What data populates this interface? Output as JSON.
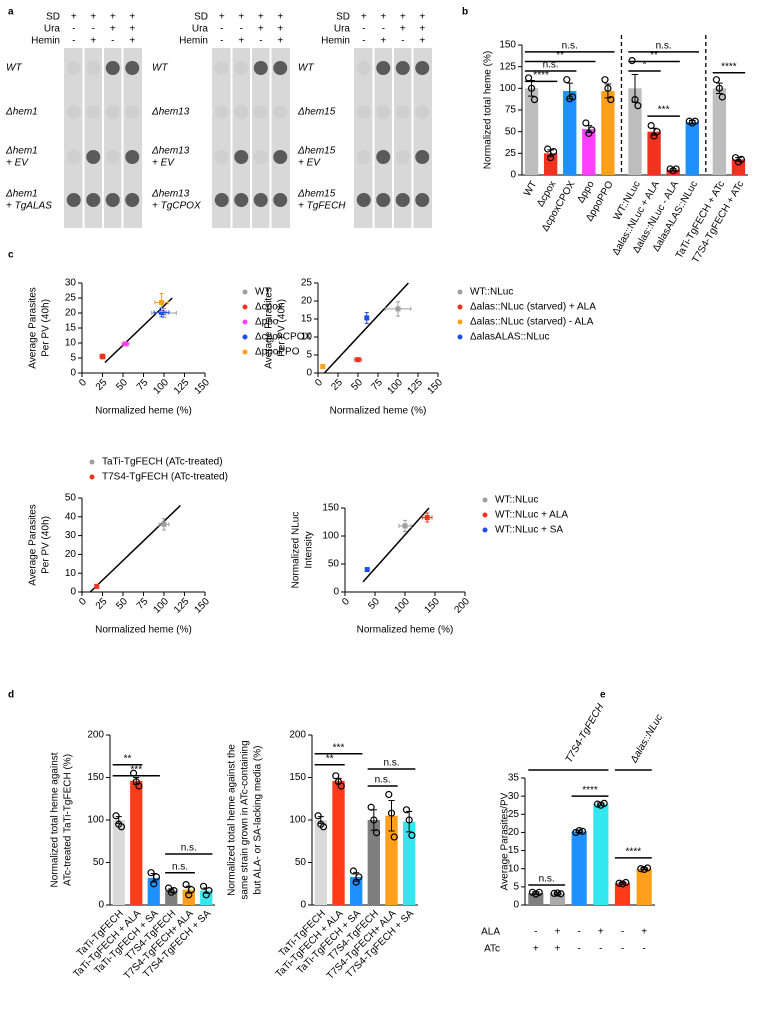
{
  "panel_labels": [
    "a",
    "b",
    "c",
    "d",
    "e"
  ],
  "panel_a": {
    "blocks": [
      {
        "headers": [
          {
            "label": "SD",
            "marks": [
              "+",
              "+",
              "+",
              "+"
            ]
          },
          {
            "label": "Ura",
            "marks": [
              "-",
              "-",
              "+",
              "+"
            ]
          },
          {
            "label": "Hemin",
            "marks": [
              "-",
              "+",
              "-",
              "+"
            ]
          }
        ],
        "rows": [
          [
            "WT"
          ],
          [
            "Δhem1"
          ],
          [
            "Δhem1",
            "+ EV"
          ],
          [
            "Δhem1",
            "+ TgALAS"
          ]
        ]
      },
      {
        "headers": [
          {
            "label": "SD",
            "marks": [
              "+",
              "+",
              "+",
              "+"
            ]
          },
          {
            "label": "Ura",
            "marks": [
              "-",
              "-",
              "+",
              "+"
            ]
          },
          {
            "label": "Hemin",
            "marks": [
              "-",
              "+",
              "-",
              "+"
            ]
          }
        ],
        "rows": [
          [
            "WT"
          ],
          [
            "Δhem13"
          ],
          [
            "Δhem13",
            "+ EV"
          ],
          [
            "Δhem13",
            "+ TgCPOX"
          ]
        ]
      },
      {
        "headers": [
          {
            "label": "SD",
            "marks": [
              "+",
              "+",
              "+",
              "+"
            ]
          },
          {
            "label": "Ura",
            "marks": [
              "-",
              "-",
              "+",
              "+"
            ]
          },
          {
            "label": "Hemin",
            "marks": [
              "-",
              "+",
              "-",
              "+"
            ]
          }
        ],
        "rows": [
          [
            "WT"
          ],
          [
            "Δhem15"
          ],
          [
            "Δhem15",
            "+ EV"
          ],
          [
            "Δhem15",
            "+ TgFECH"
          ]
        ]
      }
    ]
  },
  "chart_data": [
    {
      "type": "bar",
      "ylabel": [
        "Normalized total heme (%)"
      ],
      "categories": [
        "WT",
        "Δcpox",
        "ΔcpoxCPOX",
        "Δppo",
        "ΔppoPPO",
        "WT::NLuc",
        "Δalas::NLuc + ALA",
        "Δalas::NLuc - ALA",
        "ΔalasALAS::NLuc",
        "TaTi-TgFECH + ATc",
        "T7S4-TgFECH + ATc"
      ],
      "values": [
        100,
        25,
        97,
        53,
        97,
        100,
        50,
        6,
        61,
        100,
        18
      ],
      "errors": [
        9,
        4,
        9,
        4,
        8,
        16,
        4,
        1,
        2,
        6,
        2
      ],
      "points": [
        [
          112,
          100,
          87
        ],
        [
          30,
          20,
          27
        ],
        [
          110,
          88,
          90
        ],
        [
          60,
          48,
          52
        ],
        [
          110,
          100,
          87
        ],
        [
          132,
          87,
          80
        ],
        [
          57,
          45,
          50
        ],
        [
          7,
          5,
          7
        ],
        [
          62,
          60,
          62
        ],
        [
          110,
          100,
          90
        ],
        [
          20,
          15,
          18
        ]
      ],
      "colors": [
        "#bdbdbd",
        "#f0321e",
        "#1e90ff",
        "#ff40ff",
        "#ff9f1c",
        "#bdbdbd",
        "#f0321e",
        "#f0321e",
        "#1e90ff",
        "#bdbdbd",
        "#f0321e"
      ],
      "ylim": [
        0,
        150
      ],
      "yticks": [
        0,
        25,
        50,
        75,
        100,
        125,
        150
      ],
      "annotations": [
        "n.s.",
        "**",
        "n.s.",
        "****",
        "n.s.",
        "**",
        "*",
        "***",
        "****"
      ]
    },
    {
      "type": "scatter",
      "xlabel": "Normalized heme (%)",
      "ylabel": [
        "Average Parasites",
        "Per PV (40h)"
      ],
      "xlim": [
        0,
        150
      ],
      "xticks": [
        0,
        25,
        50,
        75,
        100,
        125,
        150
      ],
      "ylim": [
        0,
        30
      ],
      "yticks": [
        0,
        5,
        10,
        15,
        20,
        25,
        30
      ],
      "series": [
        {
          "name": "WT",
          "color": "#9e9e9e",
          "x": [
            100
          ],
          "xerr": [
            15
          ],
          "values": [
            20
          ],
          "yerr": [
            1.5
          ]
        },
        {
          "name": "Δcpox",
          "color": "#f0321e",
          "x": [
            25
          ],
          "xerr": [
            3
          ],
          "values": [
            5.5
          ],
          "yerr": [
            0.8
          ]
        },
        {
          "name": "Δppo",
          "color": "#ff40ff",
          "x": [
            53
          ],
          "xerr": [
            4
          ],
          "values": [
            9.7
          ],
          "yerr": [
            0.5
          ]
        },
        {
          "name": "ΔcpoxCPOX",
          "color": "#1e50e6",
          "x": [
            97
          ],
          "xerr": [
            9
          ],
          "values": [
            20.2
          ],
          "yerr": [
            1.5
          ]
        },
        {
          "name": "ΔppoPPO",
          "color": "#ff9f1c",
          "x": [
            97
          ],
          "xerr": [
            8
          ],
          "values": [
            23.5
          ],
          "yerr": [
            3
          ]
        }
      ],
      "trendline": {
        "x": [
          28,
          110
        ],
        "y": [
          3.5,
          25
        ]
      }
    },
    {
      "type": "scatter",
      "xlabel": "Normalized heme (%)",
      "ylabel": [
        "Average Parasites",
        "Per PV (40h)"
      ],
      "xlim": [
        0,
        150
      ],
      "xticks": [
        0,
        25,
        50,
        75,
        100,
        125,
        150
      ],
      "ylim": [
        0,
        25
      ],
      "yticks": [
        0,
        5,
        10,
        15,
        20,
        25
      ],
      "series": [
        {
          "name": "WT::NLuc",
          "color": "#9e9e9e",
          "x": [
            100
          ],
          "xerr": [
            16
          ],
          "values": [
            17.8
          ],
          "yerr": [
            2
          ]
        },
        {
          "name": "Δalas::NLuc (starved) + ALA",
          "color": "#f0321e",
          "x": [
            50
          ],
          "xerr": [
            4
          ],
          "values": [
            3.7
          ],
          "yerr": [
            0.3
          ]
        },
        {
          "name": "Δalas::NLuc (starved) - ALA",
          "color": "#ff9f1c",
          "x": [
            6
          ],
          "xerr": [
            1
          ],
          "values": [
            1.8
          ],
          "yerr": [
            0.3
          ]
        },
        {
          "name": "ΔalasALAS::NLuc",
          "color": "#1e50e6",
          "x": [
            61
          ],
          "xerr": [
            2
          ],
          "values": [
            15.3
          ],
          "yerr": [
            1.5
          ]
        }
      ],
      "trendline": {
        "x": [
          8,
          113
        ],
        "y": [
          0,
          25
        ]
      }
    },
    {
      "type": "scatter",
      "xlabel": "Normalized heme (%)",
      "ylabel": [
        "Average Parasites",
        "Per PV (40h)"
      ],
      "xlim": [
        0,
        150
      ],
      "xticks": [
        0,
        25,
        50,
        75,
        100,
        125,
        150
      ],
      "ylim": [
        0,
        50
      ],
      "yticks": [
        0,
        10,
        20,
        30,
        40,
        50
      ],
      "series": [
        {
          "name": "TaTi-TgFECH (ATc-treated)",
          "color": "#9e9e9e",
          "x": [
            100
          ],
          "xerr": [
            6
          ],
          "values": [
            36
          ],
          "yerr": [
            3
          ]
        },
        {
          "name": "T7S4-TgFECH (ATc-treated)",
          "color": "#f0321e",
          "x": [
            18
          ],
          "xerr": [
            2
          ],
          "values": [
            3
          ],
          "yerr": [
            0.5
          ]
        }
      ],
      "trendline": {
        "x": [
          10,
          120
        ],
        "y": [
          0,
          46
        ]
      }
    },
    {
      "type": "scatter",
      "xlabel": "Normalized heme (%)",
      "ylabel": [
        "Normalized NLuc",
        "Intensity"
      ],
      "xlim": [
        0,
        200
      ],
      "xticks": [
        0,
        50,
        100,
        150,
        200
      ],
      "ylim": [
        0,
        150
      ],
      "yticks": [
        0,
        50,
        100,
        150
      ],
      "series": [
        {
          "name": "WT::NLuc",
          "color": "#9e9e9e",
          "x": [
            100
          ],
          "xerr": [
            10
          ],
          "values": [
            118
          ],
          "yerr": [
            10
          ]
        },
        {
          "name": "WT::NLuc + ALA",
          "color": "#f0321e",
          "x": [
            137
          ],
          "xerr": [
            8
          ],
          "values": [
            133
          ],
          "yerr": [
            8
          ]
        },
        {
          "name": "WT::NLuc + SA",
          "color": "#1e50e6",
          "x": [
            37
          ],
          "xerr": [
            3
          ],
          "values": [
            40
          ],
          "yerr": [
            3
          ]
        }
      ],
      "trendline": {
        "x": [
          30,
          140
        ],
        "y": [
          18,
          150
        ]
      }
    },
    {
      "type": "bar",
      "ylabel": [
        "Normalized total heme against",
        "ATc-treated TaTi-TgFECH (%)"
      ],
      "categories": [
        "TaTi-TgFECH",
        "TaTi-TgFECH + ALA",
        "TaTi-TgFECH + SA",
        "T7S4-TgFECH",
        "T7S4-TgFECH+ ALA",
        "T7S4-TgFECH + SA"
      ],
      "values": [
        100,
        146,
        32,
        17,
        18,
        17
      ],
      "errors": [
        4,
        4,
        5,
        2,
        4,
        3
      ],
      "points": [
        [
          105,
          95,
          92
        ],
        [
          155,
          145,
          140
        ],
        [
          38,
          25,
          33
        ],
        [
          20,
          15,
          17
        ],
        [
          24,
          12,
          18
        ],
        [
          22,
          12,
          17
        ]
      ],
      "colors": [
        "#d9d9d9",
        "#ff3b1a",
        "#1e90ff",
        "#7f7f7f",
        "#ff9f1c",
        "#33e6f0"
      ],
      "ylim": [
        0,
        200
      ],
      "yticks": [
        0,
        50,
        100,
        150,
        200
      ],
      "annotations": [
        "**",
        "***",
        "n.s.",
        "n.s."
      ]
    },
    {
      "type": "bar",
      "ylabel": [
        "Normalized total heme against the",
        "same strain grown in ATc-containing",
        "but ALA- or SA-lacking media (%)"
      ],
      "categories": [
        "TaTi-TgFECH",
        "TaTi-TgFECH + ALA",
        "TaTi-TgFECH + SA",
        "T7S4-TgFECH",
        "T7S4-TgFECH+ ALA",
        "T7S4-TgFECH + SA"
      ],
      "values": [
        100,
        146,
        33,
        100,
        105,
        98
      ],
      "errors": [
        4,
        3,
        5,
        12,
        18,
        12
      ],
      "points": [
        [
          105,
          95,
          92
        ],
        [
          152,
          145,
          140
        ],
        [
          40,
          27,
          33
        ],
        [
          115,
          100,
          85
        ],
        [
          130,
          108,
          80
        ],
        [
          112,
          100,
          82
        ]
      ],
      "colors": [
        "#d9d9d9",
        "#ff3b1a",
        "#1e90ff",
        "#7f7f7f",
        "#ff9f1c",
        "#33e6f0"
      ],
      "ylim": [
        0,
        200
      ],
      "yticks": [
        0,
        50,
        100,
        150,
        200
      ],
      "annotations": [
        "**",
        "***",
        "n.s.",
        "n.s."
      ]
    },
    {
      "type": "bar",
      "ylabel": [
        "Average Parasites/PV"
      ],
      "categories": [
        null,
        null,
        null,
        null,
        null,
        null
      ],
      "values": [
        3.3,
        3.2,
        20.3,
        27.8,
        6,
        10
      ],
      "errors": [
        0.3,
        0.2,
        0.3,
        0.3,
        0.2,
        0.2
      ],
      "points": [
        [
          3.5,
          3,
          3.5
        ],
        [
          3.2,
          3.3,
          3.1
        ],
        [
          20,
          20.5,
          20.3
        ],
        [
          27.8,
          27.5,
          28
        ],
        [
          6,
          5.8,
          6.2
        ],
        [
          10,
          9.8,
          10.2
        ]
      ],
      "colors": [
        "#7f7f7f",
        "#aaaaaa",
        "#1e90ff",
        "#33e6f0",
        "#ff3b1a",
        "#ff9f1c"
      ],
      "ylim": [
        0,
        35
      ],
      "yticks": [
        0,
        5,
        10,
        15,
        20,
        25,
        30,
        35
      ],
      "annotations": [
        "n.s.",
        "****",
        "****"
      ],
      "groups": [
        "T7S4-TgFECH",
        "Δalas::NLuc"
      ],
      "table": [
        {
          "label": "ALA",
          "marks": [
            "-",
            "+",
            "-",
            "+",
            "-",
            "+"
          ]
        },
        {
          "label": "ATc",
          "marks": [
            "+",
            "+",
            "-",
            "-",
            "-",
            "-"
          ]
        }
      ]
    }
  ]
}
